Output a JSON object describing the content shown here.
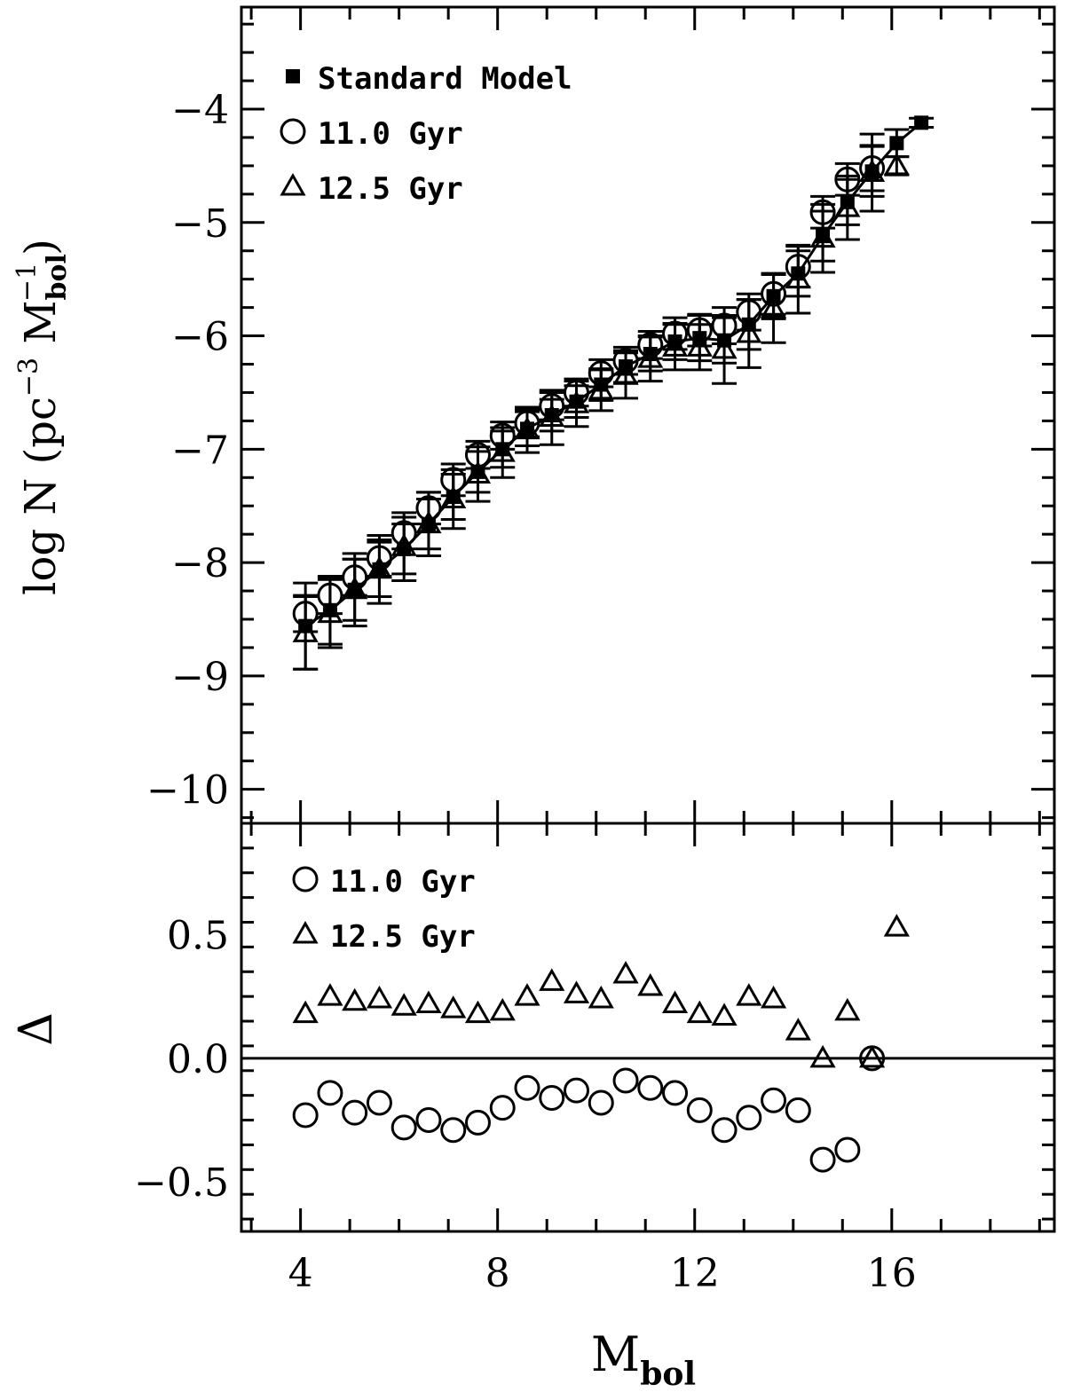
{
  "chart_data": [
    {
      "type": "scatter",
      "panel": "top",
      "xlabel_main": "M",
      "xlabel_sub": "bol",
      "ylabel_pre": "log N (pc",
      "ylabel_exp1": "−3",
      "ylabel_mid": " M",
      "ylabel_sub": "bol",
      "ylabel_exp2": "−1",
      "ylabel_post": ")",
      "xlim": [
        2.8,
        19.3
      ],
      "ylim": [
        -10.3,
        -3.1
      ],
      "xticks": [
        4,
        8,
        12,
        16
      ],
      "xtick_labels": [
        "4",
        "8",
        "12",
        "16"
      ],
      "yticks": [
        -10,
        -9,
        -8,
        -7,
        -6,
        -5,
        -4
      ],
      "ytick_labels": [
        "−10",
        "−9",
        "−8",
        "−7",
        "−6",
        "−5",
        "−4"
      ],
      "legend": [
        "Standard Model",
        "11.0 Gyr",
        "12.5 Gyr"
      ],
      "series": [
        {
          "name": "Standard Model",
          "marker": "square",
          "x": [
            4.1,
            4.6,
            5.1,
            5.6,
            6.1,
            6.6,
            7.1,
            7.6,
            8.1,
            8.6,
            9.1,
            9.6,
            10.1,
            10.6,
            11.1,
            11.6,
            12.1,
            12.6,
            13.1,
            13.6,
            14.1,
            14.6,
            15.1,
            15.6,
            16.1,
            16.6
          ],
          "y": [
            -8.56,
            -8.42,
            -8.24,
            -8.06,
            -7.88,
            -7.66,
            -7.42,
            -7.2,
            -7.0,
            -6.82,
            -6.7,
            -6.58,
            -6.43,
            -6.27,
            -6.16,
            -6.05,
            -6.02,
            -6.04,
            -5.9,
            -5.65,
            -5.45,
            -5.12,
            -4.82,
            -4.55,
            -4.3,
            -4.12
          ],
          "err": [
            0.38,
            0.3,
            0.27,
            0.24,
            0.22,
            0.22,
            0.2,
            0.18,
            0.16,
            0.15,
            0.14,
            0.14,
            0.14,
            0.14,
            0.15,
            0.16,
            0.2,
            0.2,
            0.22,
            0.2,
            0.2,
            0.22,
            0.2,
            0.22,
            0.12,
            0.04
          ]
        },
        {
          "name": "11.0 Gyr",
          "marker": "circle",
          "x": [
            4.1,
            4.6,
            5.1,
            5.6,
            6.1,
            6.6,
            7.1,
            7.6,
            8.1,
            8.6,
            9.1,
            9.6,
            10.1,
            10.6,
            11.1,
            11.6,
            12.1,
            12.6,
            13.1,
            13.6,
            14.1,
            14.6,
            15.1,
            15.6
          ],
          "y": [
            -8.45,
            -8.29,
            -8.13,
            -7.96,
            -7.74,
            -7.52,
            -7.27,
            -7.05,
            -6.88,
            -6.77,
            -6.62,
            -6.5,
            -6.33,
            -6.22,
            -6.08,
            -5.98,
            -5.95,
            -5.91,
            -5.79,
            -5.63,
            -5.39,
            -4.91,
            -4.62,
            -4.52
          ],
          "err": [
            0.16,
            0.16,
            0.16,
            0.16,
            0.14,
            0.14,
            0.14,
            0.12,
            0.12,
            0.12,
            0.12,
            0.12,
            0.12,
            0.12,
            0.12,
            0.14,
            0.14,
            0.16,
            0.16,
            0.18,
            0.18,
            0.14,
            0.14,
            0.2
          ]
        },
        {
          "name": "12.5 Gyr",
          "marker": "triangle",
          "x": [
            4.1,
            4.6,
            5.1,
            5.6,
            6.1,
            6.6,
            7.1,
            7.6,
            8.1,
            8.6,
            9.1,
            9.6,
            10.1,
            10.6,
            11.1,
            11.6,
            12.1,
            12.6,
            13.1,
            13.6,
            14.1,
            14.6,
            15.1,
            15.6,
            16.1
          ],
          "y": [
            -8.62,
            -8.45,
            -8.24,
            -8.06,
            -7.86,
            -7.66,
            -7.44,
            -7.22,
            -7.03,
            -6.83,
            -6.72,
            -6.6,
            -6.48,
            -6.35,
            -6.2,
            -6.1,
            -6.1,
            -6.12,
            -5.98,
            -5.76,
            -5.5,
            -5.14,
            -4.87,
            -4.56,
            -4.5
          ],
          "err": [
            0.32,
            0.3,
            0.32,
            0.3,
            0.3,
            0.28,
            0.26,
            0.24,
            0.22,
            0.2,
            0.24,
            0.2,
            0.18,
            0.2,
            0.2,
            0.2,
            0.2,
            0.3,
            0.3,
            0.3,
            0.3,
            0.3,
            0.28,
            0.34,
            0.08
          ]
        }
      ]
    },
    {
      "type": "scatter",
      "panel": "bottom",
      "xlabel_main": "M",
      "xlabel_sub": "bol",
      "ylabel": "Δ",
      "xlim": [
        2.8,
        19.3
      ],
      "ylim": [
        -0.7,
        0.95
      ],
      "xticks": [
        4,
        8,
        12,
        16
      ],
      "xtick_labels": [
        "4",
        "8",
        "12",
        "16"
      ],
      "yticks": [
        -0.5,
        0.0,
        0.5
      ],
      "ytick_labels": [
        "−0.5",
        "0.0",
        "0.5"
      ],
      "legend": [
        "11.0 Gyr",
        "12.5 Gyr"
      ],
      "reference_line": 0.0,
      "series": [
        {
          "name": "11.0 Gyr",
          "marker": "circle",
          "x": [
            4.1,
            4.6,
            5.1,
            5.6,
            6.1,
            6.6,
            7.1,
            7.6,
            8.1,
            8.6,
            9.1,
            9.6,
            10.1,
            10.6,
            11.1,
            11.6,
            12.1,
            12.6,
            13.1,
            13.6,
            14.1,
            14.6,
            15.1,
            15.6
          ],
          "y": [
            -0.23,
            -0.14,
            -0.22,
            -0.18,
            -0.28,
            -0.25,
            -0.29,
            -0.26,
            -0.2,
            -0.12,
            -0.16,
            -0.13,
            -0.18,
            -0.09,
            -0.12,
            -0.14,
            -0.21,
            -0.29,
            -0.24,
            -0.17,
            -0.21,
            -0.41,
            -0.37,
            0.0
          ]
        },
        {
          "name": "12.5 Gyr",
          "marker": "triangle",
          "x": [
            4.1,
            4.6,
            5.1,
            5.6,
            6.1,
            6.6,
            7.1,
            7.6,
            8.1,
            8.6,
            9.1,
            9.6,
            10.1,
            10.6,
            11.1,
            11.6,
            12.1,
            12.6,
            13.1,
            13.6,
            14.1,
            14.6,
            15.1,
            15.6,
            16.1
          ],
          "y": [
            0.18,
            0.25,
            0.23,
            0.24,
            0.21,
            0.22,
            0.2,
            0.18,
            0.19,
            0.25,
            0.31,
            0.26,
            0.24,
            0.34,
            0.29,
            0.22,
            0.18,
            0.17,
            0.25,
            0.24,
            0.11,
            0.0,
            0.19,
            0.0,
            0.53
          ]
        }
      ]
    }
  ]
}
